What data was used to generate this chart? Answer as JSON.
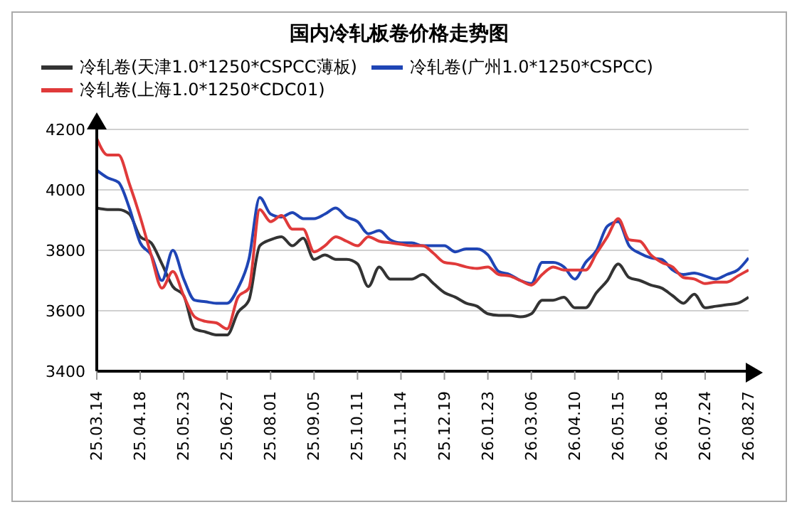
{
  "chart_data": {
    "type": "line",
    "title": "国内冷轧板卷价格走势图",
    "categories": [
      "25.03.14",
      null,
      null,
      null,
      "25.04.18",
      null,
      null,
      null,
      "25.05.23",
      null,
      null,
      null,
      "25.06.27",
      null,
      null,
      null,
      "25.08.01",
      null,
      null,
      null,
      "25.09.05",
      null,
      null,
      null,
      "25.10.11",
      null,
      null,
      null,
      "25.11.14",
      null,
      null,
      null,
      "25.12.19",
      null,
      null,
      null,
      "26.01.23",
      null,
      null,
      null,
      "26.03.06",
      null,
      null,
      null,
      "26.04.10",
      null,
      null,
      null,
      "26.05.15",
      null,
      null,
      null,
      "26.06.18",
      null,
      null,
      null,
      "26.07.24",
      null,
      null,
      null,
      "26.08.27"
    ],
    "series": [
      {
        "name": "冷轧卷(天津1.0*1250*CSPCC薄板)",
        "color": "#333333",
        "values": [
          3940,
          3935,
          3935,
          3920,
          3845,
          3825,
          3755,
          3680,
          3650,
          3540,
          3530,
          3520,
          3520,
          3595,
          3635,
          3815,
          3835,
          3845,
          3815,
          3840,
          3770,
          3785,
          3770,
          3770,
          3755,
          3680,
          3745,
          3705,
          3705,
          3705,
          3720,
          3690,
          3660,
          3645,
          3625,
          3615,
          3590,
          3585,
          3585,
          3580,
          3590,
          3635,
          3635,
          3645,
          3610,
          3610,
          3660,
          3700,
          3755,
          3710,
          3700,
          3685,
          3675,
          3650,
          3625,
          3655,
          3610,
          3615,
          3620,
          3625,
          3645
        ]
      },
      {
        "name": "冷轧卷(广州1.0*1250*CSPCC)",
        "color": "#1f45b5",
        "values": [
          4065,
          4040,
          4025,
          3940,
          3825,
          3785,
          3700,
          3800,
          3705,
          3635,
          3630,
          3625,
          3625,
          3675,
          3770,
          3975,
          3920,
          3910,
          3925,
          3905,
          3905,
          3920,
          3940,
          3910,
          3895,
          3855,
          3865,
          3835,
          3825,
          3825,
          3815,
          3815,
          3815,
          3795,
          3805,
          3805,
          3785,
          3730,
          3720,
          3700,
          3690,
          3760,
          3760,
          3745,
          3705,
          3760,
          3800,
          3880,
          3895,
          3815,
          3790,
          3775,
          3770,
          3735,
          3720,
          3725,
          3715,
          3705,
          3720,
          3735,
          3775
        ]
      },
      {
        "name": "冷轧卷(上海1.0*1250*CDC01)",
        "color": "#e03a3a",
        "values": [
          4170,
          4115,
          4115,
          4020,
          3910,
          3785,
          3675,
          3730,
          3650,
          3580,
          3565,
          3560,
          3540,
          3645,
          3675,
          3935,
          3895,
          3915,
          3870,
          3870,
          3795,
          3815,
          3845,
          3830,
          3815,
          3845,
          3830,
          3825,
          3820,
          3815,
          3815,
          3790,
          3760,
          3755,
          3745,
          3740,
          3745,
          3720,
          3715,
          3700,
          3685,
          3720,
          3745,
          3735,
          3735,
          3735,
          3790,
          3845,
          3905,
          3835,
          3830,
          3785,
          3760,
          3745,
          3710,
          3705,
          3690,
          3695,
          3695,
          3715,
          3735
        ]
      }
    ],
    "ylim": [
      3400,
      4200
    ],
    "yticks": [
      3400,
      3600,
      3800,
      4000,
      4200
    ],
    "grid": "y",
    "legend": "top",
    "marker": "none",
    "line_style": "solid"
  }
}
